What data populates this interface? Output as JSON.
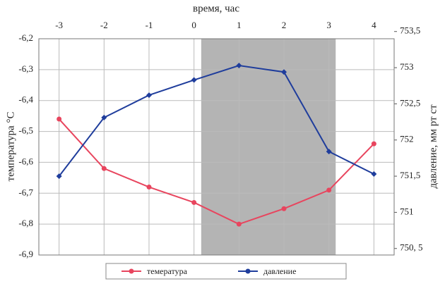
{
  "chart_data": {
    "type": "line",
    "x_label": "время, час",
    "y_label": "температура °С",
    "y2_label": "давление, мм рт ст",
    "x": [
      -3,
      -2,
      -1,
      0,
      1,
      2,
      3,
      4
    ],
    "xlim": [
      -3.45,
      4.45
    ],
    "xticks": [
      -3,
      -2,
      -1,
      0,
      1,
      2,
      3,
      4
    ],
    "ylim": [
      -6.9,
      -6.2
    ],
    "yticks": [
      {
        "value": -6.2,
        "label": "-6,2"
      },
      {
        "value": -6.3,
        "label": "-6,3"
      },
      {
        "value": -6.4,
        "label": "-6,4"
      },
      {
        "value": -6.5,
        "label": "-6,5"
      },
      {
        "value": -6.6,
        "label": "-6,6"
      },
      {
        "value": -6.7,
        "label": "-6,7"
      },
      {
        "value": -6.8,
        "label": "-6,8"
      },
      {
        "value": -6.9,
        "label": "-6,9"
      }
    ],
    "y2lim": [
      750.41,
      753.4
    ],
    "y2ticks": [
      {
        "value": 753.5,
        "label": "753,5"
      },
      753,
      {
        "value": 752.5,
        "label": "752,5"
      },
      752,
      {
        "value": 751.5,
        "label": "751,5"
      },
      751,
      {
        "value": 750.5,
        "label": "750, 5"
      }
    ],
    "grid": true,
    "highlight_x": [
      0.16,
      3.15
    ],
    "highlight_color": "#b4b4b4",
    "legend": "bottom",
    "series": [
      {
        "name": "темература",
        "color": "#e8455e",
        "values": [
          -6.46,
          -6.62,
          -6.68,
          -6.73,
          -6.8,
          -6.75,
          -6.69,
          -6.54
        ]
      },
      {
        "name": "давление",
        "color": "#1f3d9c",
        "axis": "y2",
        "values": [
          751.5,
          752.31,
          752.62,
          752.83,
          753.03,
          752.94,
          751.84,
          751.53
        ]
      }
    ]
  }
}
